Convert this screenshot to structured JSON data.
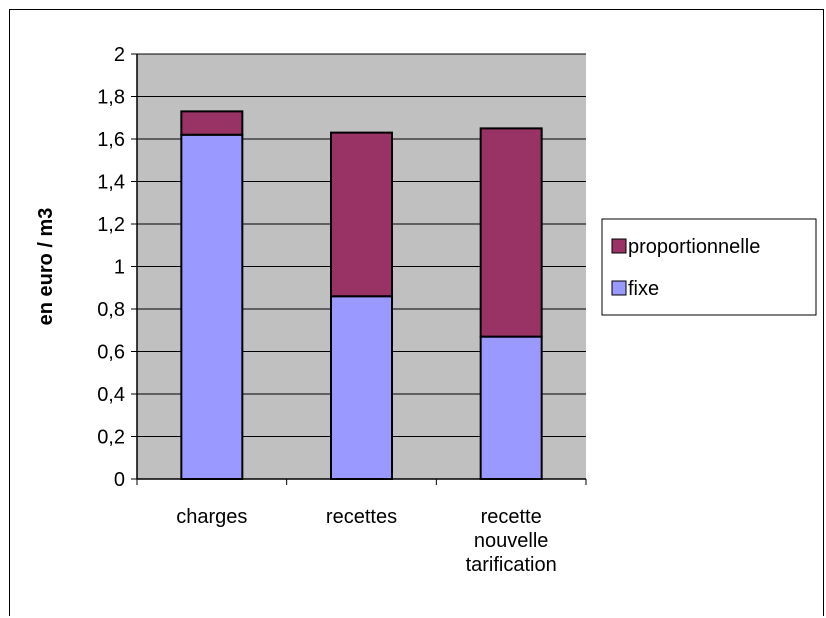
{
  "chart_data": {
    "type": "bar",
    "stacked": true,
    "categories": [
      "charges",
      "recettes",
      "recette nouvelle tarification"
    ],
    "category_lines": [
      [
        "charges"
      ],
      [
        "recettes"
      ],
      [
        "recette",
        "nouvelle",
        "tarification"
      ]
    ],
    "series": [
      {
        "name": "fixe",
        "values": [
          1.62,
          0.86,
          0.67
        ],
        "color": "#9999ff"
      },
      {
        "name": "proportionnelle",
        "values": [
          0.11,
          0.77,
          0.98
        ],
        "color": "#993366"
      }
    ],
    "title": "",
    "xlabel": "",
    "ylabel": "en euro / m3",
    "ylim": [
      0,
      2
    ],
    "yticks": [
      0,
      0.2,
      0.4,
      0.6,
      0.8,
      1,
      1.2,
      1.4,
      1.6,
      1.8,
      2
    ],
    "ytick_labels": [
      "0",
      "0,2",
      "0,4",
      "0,6",
      "0,8",
      "1",
      "1,2",
      "1,4",
      "1,6",
      "1,8",
      "2"
    ],
    "grid": true,
    "plot_background": "#c0c0c0",
    "legend": {
      "position": "right",
      "entries": [
        "proportionnelle",
        "fixe"
      ]
    }
  }
}
